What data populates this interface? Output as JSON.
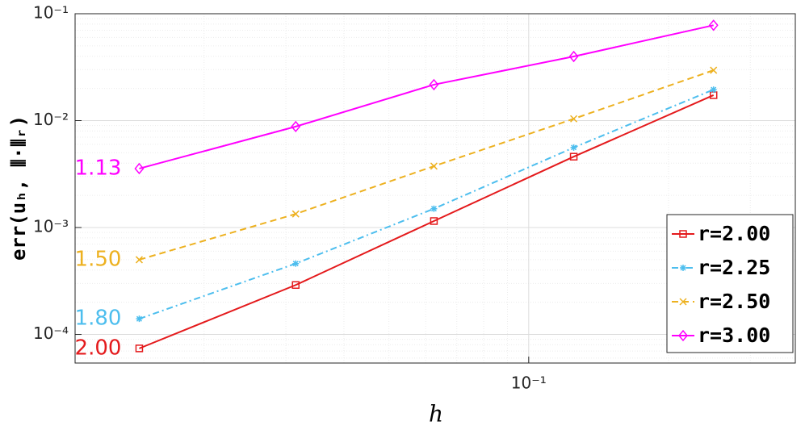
{
  "chart_data": {
    "type": "line",
    "x_label": "h",
    "y_label": "err(uₕ, ⦀·⦀ᵣ)",
    "x": [
      0.0145,
      0.0315,
      0.0625,
      0.125,
      0.25
    ],
    "series": [
      {
        "name": "r=2.00",
        "color": "#e41a1c",
        "linestyle": "solid",
        "marker": "square",
        "values": [
          7.4e-05,
          0.00029,
          0.00115,
          0.0046,
          0.0173
        ]
      },
      {
        "name": "r=2.25",
        "color": "#4dbeee",
        "linestyle": "dashdot",
        "marker": "asterisk",
        "values": [
          0.00014,
          0.00046,
          0.0015,
          0.0056,
          0.0195
        ]
      },
      {
        "name": "r=2.50",
        "color": "#edb120",
        "linestyle": "dashed",
        "marker": "x",
        "values": [
          0.0005,
          0.00134,
          0.00375,
          0.0104,
          0.0296
        ]
      },
      {
        "name": "r=3.00",
        "color": "#ff00ff",
        "linestyle": "solid",
        "marker": "diamond",
        "values": [
          0.00356,
          0.0088,
          0.0217,
          0.0398,
          0.078
        ]
      }
    ],
    "annotations": [
      {
        "text": "1.13",
        "color": "#ff00ff"
      },
      {
        "text": "1.50",
        "color": "#edb120"
      },
      {
        "text": "1.80",
        "color": "#4dbeee"
      },
      {
        "text": "2.00",
        "color": "#e41a1c"
      }
    ],
    "xscale": "log",
    "yscale": "log",
    "xlim": [
      0.01055,
      0.375
    ],
    "ylim": [
      5.4e-05,
      0.1
    ],
    "xticks": [
      {
        "value": 0.1,
        "label": "10⁻¹"
      }
    ],
    "yticks": [
      {
        "value": 0.0001,
        "label": "10⁻⁴"
      },
      {
        "value": 0.001,
        "label": "10⁻³"
      },
      {
        "value": 0.01,
        "label": "10⁻²"
      },
      {
        "value": 0.1,
        "label": "10⁻¹"
      }
    ],
    "grid": true,
    "legend": "lower right"
  }
}
